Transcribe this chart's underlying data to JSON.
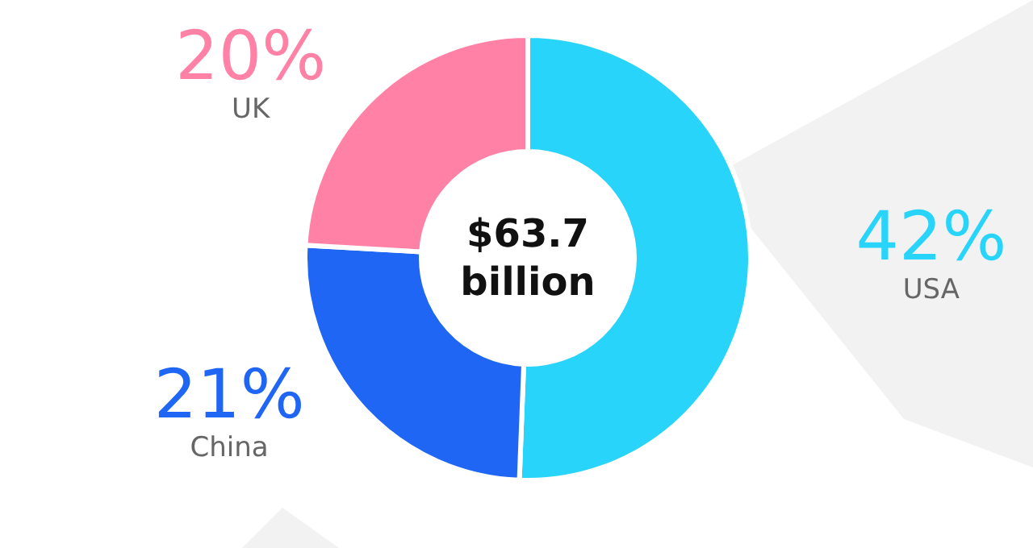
{
  "chart_data": {
    "type": "donut",
    "title": "$63.7 billion",
    "categories": [
      "USA",
      "China",
      "UK"
    ],
    "values": [
      42,
      21,
      20
    ],
    "value_labels": [
      "42%",
      "21%",
      "20%"
    ],
    "colors": [
      "#29d4fb",
      "#1f66f5",
      "#ff82a6"
    ],
    "legend": false
  }
}
